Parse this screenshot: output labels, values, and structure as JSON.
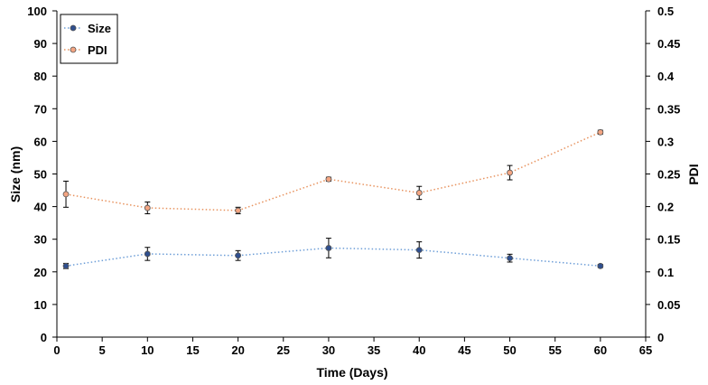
{
  "chart_data": {
    "type": "scatter",
    "xlabel": "Time (Days)",
    "ylabel": "Size (nm)",
    "y2label": "PDI",
    "xlim": [
      0,
      65
    ],
    "ylim": [
      0,
      100
    ],
    "y2lim": [
      0,
      0.5
    ],
    "xticks": [
      0,
      5,
      10,
      15,
      20,
      25,
      30,
      35,
      40,
      45,
      50,
      55,
      60,
      65
    ],
    "yticks": [
      0,
      10,
      20,
      30,
      40,
      50,
      60,
      70,
      80,
      90,
      100
    ],
    "y2ticks": [
      "0",
      "0.05",
      "0.1",
      "0.15",
      "0.2",
      "0.25",
      "0.3",
      "0.35",
      "0.4",
      "0.45",
      "0.5"
    ],
    "grid": false,
    "legend_position": "top-left",
    "series": [
      {
        "name": "Size",
        "axis": "left",
        "color": "#2f4f8f",
        "line_color": "#6f9fd8",
        "points": [
          {
            "x": 1,
            "y": 21.8,
            "err": 0.8
          },
          {
            "x": 10,
            "y": 25.5,
            "err": 2.0
          },
          {
            "x": 20,
            "y": 25.0,
            "err": 1.5
          },
          {
            "x": 30,
            "y": 27.3,
            "err": 3.0
          },
          {
            "x": 40,
            "y": 26.7,
            "err": 2.5
          },
          {
            "x": 50,
            "y": 24.2,
            "err": 1.2
          },
          {
            "x": 60,
            "y": 21.8,
            "err": 0.5
          }
        ]
      },
      {
        "name": "PDI",
        "axis": "right",
        "color": "#f4a582",
        "line_color": "#e8935f",
        "points": [
          {
            "x": 1,
            "y": 0.219,
            "err": 0.02
          },
          {
            "x": 10,
            "y": 0.198,
            "err": 0.009
          },
          {
            "x": 20,
            "y": 0.194,
            "err": 0.005
          },
          {
            "x": 30,
            "y": 0.242,
            "err": 0.003
          },
          {
            "x": 40,
            "y": 0.221,
            "err": 0.01
          },
          {
            "x": 50,
            "y": 0.252,
            "err": 0.011
          },
          {
            "x": 60,
            "y": 0.314,
            "err": 0.003
          }
        ]
      }
    ]
  }
}
